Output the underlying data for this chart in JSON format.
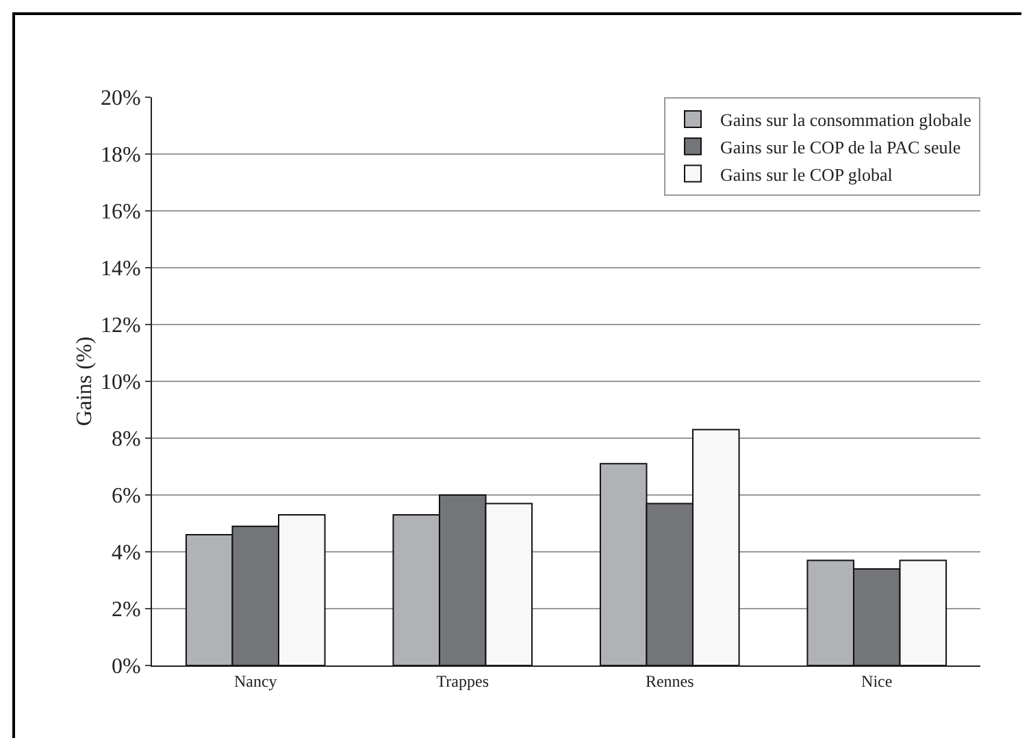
{
  "chart_data": {
    "type": "bar",
    "ylabel": "Gains (%)",
    "categories": [
      "Nancy",
      "Trappes",
      "Rennes",
      "Nice"
    ],
    "series": [
      {
        "name": "Gains sur la consommation globale",
        "color": "#b1b2b5",
        "values": [
          4.6,
          5.3,
          7.1,
          3.7
        ]
      },
      {
        "name": "Gains sur le COP de la PAC seule",
        "color": "#747578",
        "values": [
          4.9,
          6.0,
          5.7,
          3.4
        ]
      },
      {
        "name": "Gains sur le COP global",
        "color": "#f8f8f8",
        "values": [
          5.3,
          5.7,
          8.3,
          3.7
        ]
      }
    ],
    "ylim": [
      0,
      20
    ],
    "yticks": [
      {
        "value": 0,
        "label": "0%"
      },
      {
        "value": 2,
        "label": "2%"
      },
      {
        "value": 4,
        "label": "4%"
      },
      {
        "value": 6,
        "label": "6%"
      },
      {
        "value": 8,
        "label": "8%"
      },
      {
        "value": 10,
        "label": "10%"
      },
      {
        "value": 12,
        "label": "12%"
      },
      {
        "value": 14,
        "label": "14%"
      },
      {
        "value": 16,
        "label": "16%"
      },
      {
        "value": 18,
        "label": "18%"
      },
      {
        "value": 20,
        "label": "20%"
      }
    ],
    "grid": "y",
    "legend": "top right"
  }
}
